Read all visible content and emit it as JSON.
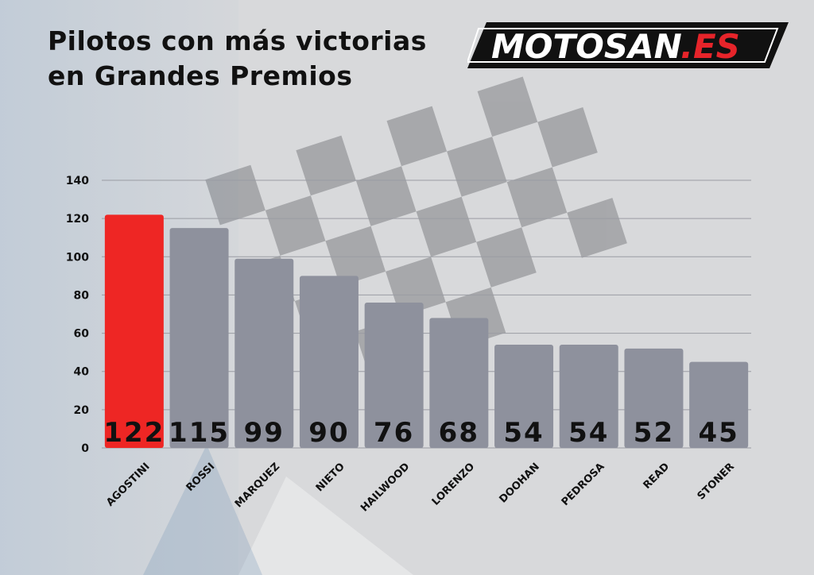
{
  "title": {
    "line1": "Pilotos con más victorias",
    "line2": "en Grandes Premios"
  },
  "logo": {
    "main": "MOTOSAN",
    "suffix": ".ES"
  },
  "colors": {
    "highlight_bar": "#ee2624",
    "bar": "#8e919d",
    "grid": "#9a9ca3",
    "text": "#111111",
    "logo_accent": "#e6242a"
  },
  "chart_data": {
    "type": "bar",
    "title": "Pilotos con más victorias en Grandes Premios",
    "xlabel": "",
    "ylabel": "",
    "categories": [
      "AGOSTINI",
      "ROSSI",
      "MARQUEZ",
      "NIETO",
      "HAILWOOD",
      "LORENZO",
      "DOOHAN",
      "PEDROSA",
      "READ",
      "STONER"
    ],
    "values": [
      122,
      115,
      99,
      90,
      76,
      68,
      54,
      54,
      52,
      45
    ],
    "data_labels": [
      "122",
      "115",
      "99",
      "90",
      "76",
      "68",
      "54",
      "54",
      "52",
      "45"
    ],
    "ylim": [
      0,
      140
    ],
    "yticks": [
      "0",
      "20",
      "40",
      "60",
      "80",
      "100",
      "120",
      "140"
    ],
    "grid": true,
    "highlight_index": 0
  }
}
